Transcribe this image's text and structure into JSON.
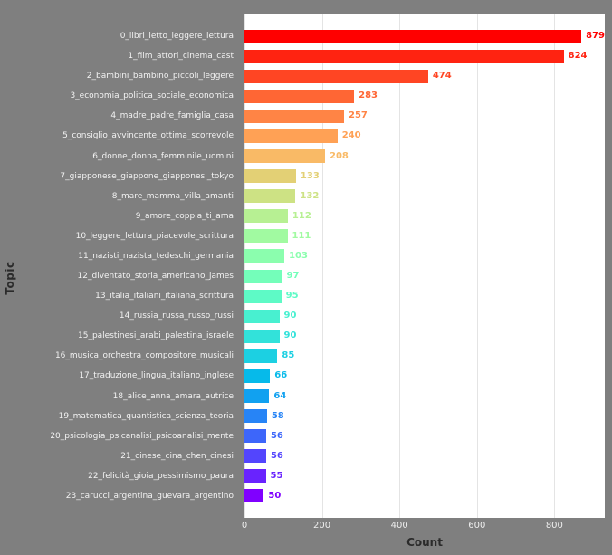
{
  "figure": {
    "background": "#7f7f7f",
    "plot_background": "#ffffff",
    "grid_color": "#e4e4e4",
    "tick_label_color": "#ededed",
    "axis_title_color": "#2b2b2b"
  },
  "chart_data": {
    "type": "bar",
    "orientation": "horizontal",
    "title": "",
    "xlabel": "Count",
    "ylabel": "Topic",
    "xlim": [
      0,
      930
    ],
    "xticks": [
      0,
      200,
      400,
      600,
      800
    ],
    "grid": "vertical",
    "legend": "none",
    "categories": [
      "0_libri_letto_leggere_lettura",
      "1_film_attori_cinema_cast",
      "2_bambini_bambino_piccoli_leggere",
      "3_economia_politica_sociale_economica",
      "4_madre_padre_famiglia_casa",
      "5_consiglio_avvincente_ottima_scorrevole",
      "6_donne_donna_femminile_uomini",
      "7_giapponese_giappone_giapponesi_tokyo",
      "8_mare_mamma_villa_amanti",
      "9_amore_coppia_ti_ama",
      "10_leggere_lettura_piacevole_scrittura",
      "11_nazisti_nazista_tedeschi_germania",
      "12_diventato_storia_americano_james",
      "13_italia_italiani_italiana_scrittura",
      "14_russia_russa_russo_russi",
      "15_palestinesi_arabi_palestina_israele",
      "16_musica_orchestra_compositore_musicali",
      "17_traduzione_lingua_italiano_inglese",
      "18_alice_anna_amara_autrice",
      "19_matematica_quantistica_scienza_teoria",
      "20_psicologia_psicanalisi_psicoanalisi_mente",
      "21_cinese_cina_chen_cinesi",
      "22_felicità_gioia_pessimismo_paura",
      "23_carucci_argentina_guevara_argentino"
    ],
    "values": [
      879,
      824,
      474,
      283,
      257,
      240,
      208,
      133,
      132,
      112,
      111,
      103,
      97,
      95,
      90,
      90,
      85,
      66,
      64,
      58,
      56,
      56,
      55,
      50
    ],
    "bar_colors": [
      "#ff0000",
      "#ff2311",
      "#ff4523",
      "#ff6634",
      "#ff8445",
      "#ffa155",
      "#f9ba66",
      "#e3d075",
      "#cde284",
      "#b7f093",
      "#a1faa1",
      "#8bfeae",
      "#74feba",
      "#5efac6",
      "#48f0d0",
      "#32e2da",
      "#1cd0e2",
      "#06baea",
      "#11a1f0",
      "#2784f6",
      "#3d66fa",
      "#5345fd",
      "#6923fe",
      "#8000ff"
    ]
  }
}
